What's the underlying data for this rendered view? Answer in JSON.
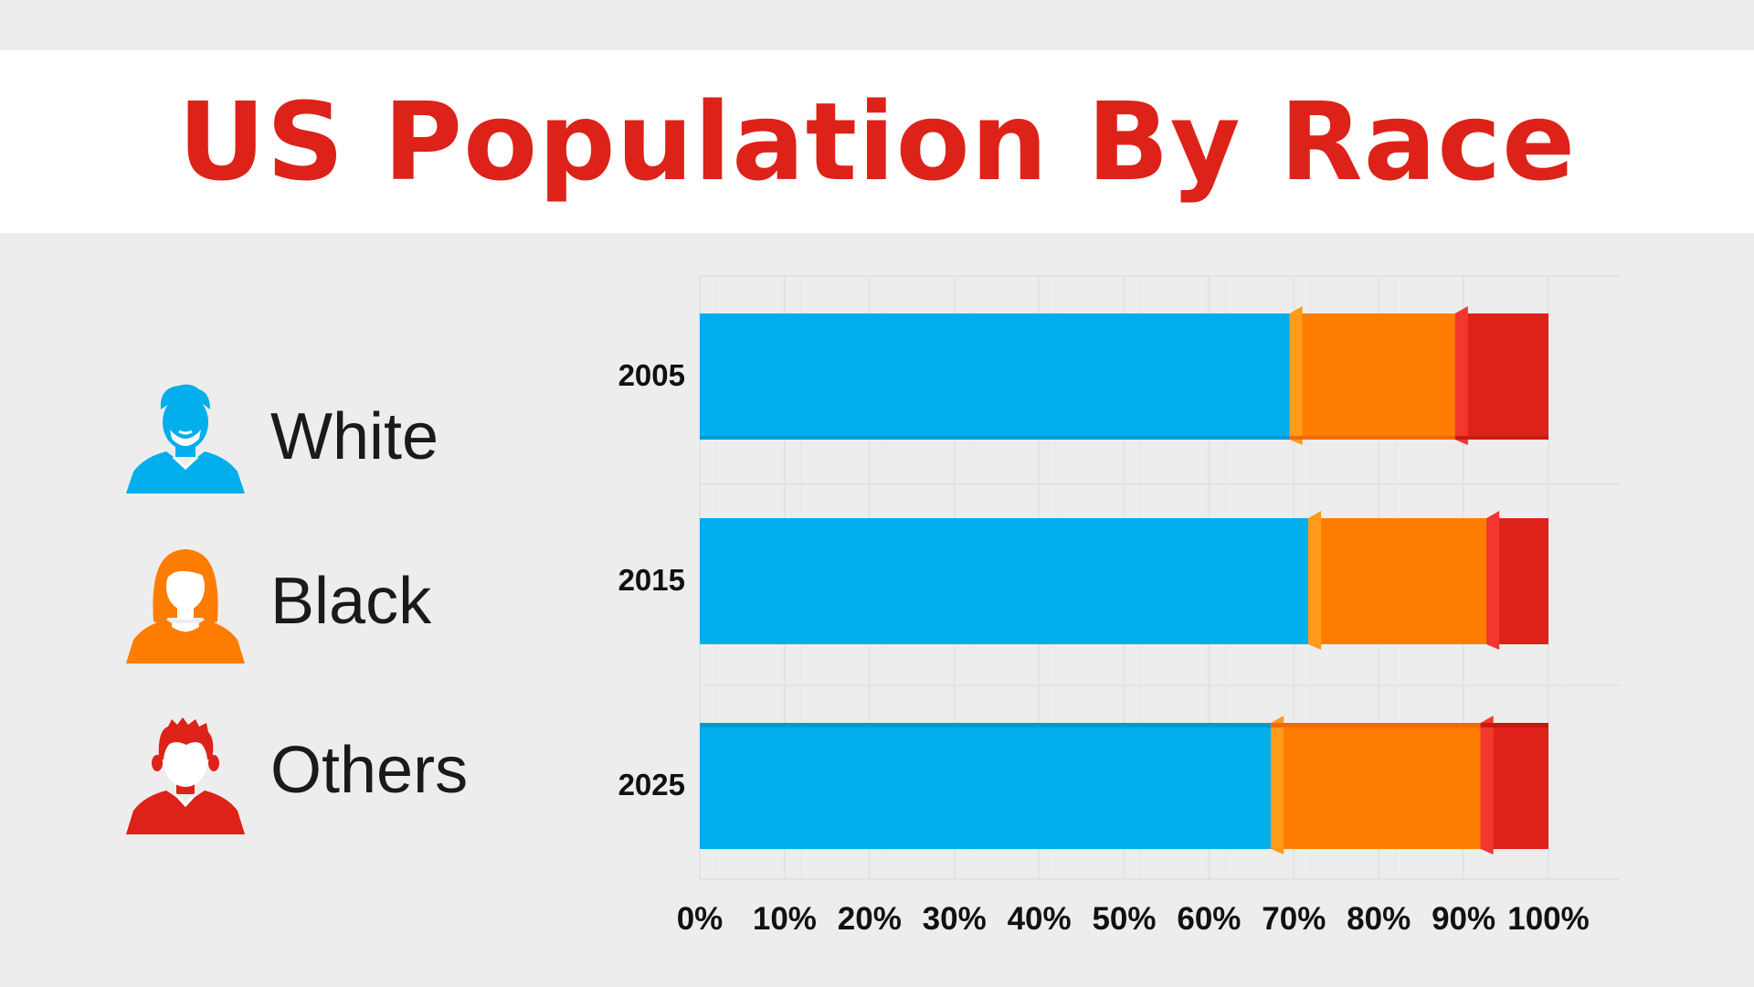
{
  "title": "US Population By Race",
  "legend": [
    {
      "label": "White",
      "color": "#02aeeb",
      "icon": "man-beard-icon"
    },
    {
      "label": "Black",
      "color": "#fe7d00",
      "icon": "woman-icon"
    },
    {
      "label": "Others",
      "color": "#dd2219",
      "icon": "man-spiky-hair-icon"
    }
  ],
  "chart_data": {
    "type": "bar",
    "orientation": "horizontal",
    "stacked": true,
    "categories": [
      "2005",
      "2015",
      "2025"
    ],
    "series": [
      {
        "name": "White",
        "color": "#02aeeb",
        "values": [
          69.5,
          71.7,
          67.3
        ]
      },
      {
        "name": "Black",
        "color": "#fe7d00",
        "values": [
          19.5,
          21.0,
          24.7
        ]
      },
      {
        "name": "Others",
        "color": "#dd2219",
        "values": [
          11.0,
          7.3,
          8.0
        ]
      }
    ],
    "x_ticks": [
      "0%",
      "10%",
      "20%",
      "30%",
      "40%",
      "50%",
      "60%",
      "70%",
      "80%",
      "90%",
      "100%"
    ],
    "xlim": [
      0,
      100
    ],
    "grid": true
  }
}
